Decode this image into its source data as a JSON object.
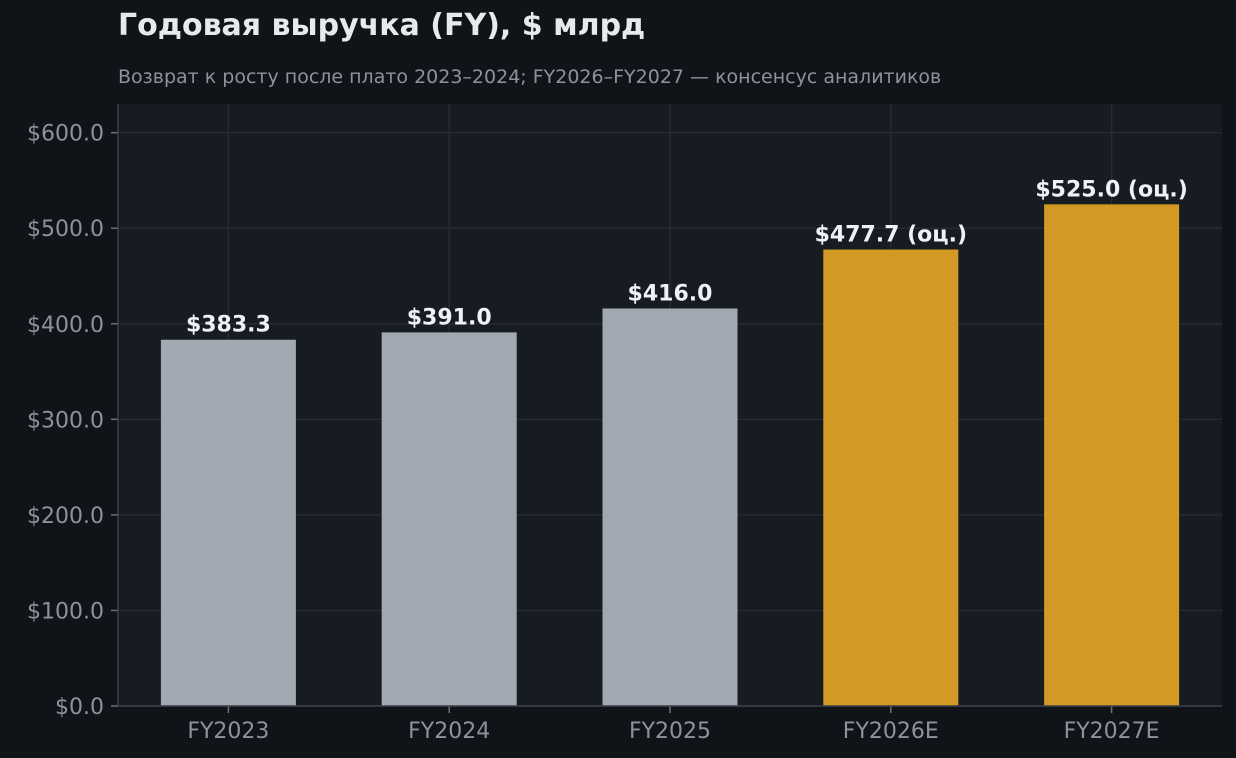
{
  "title": "Годовая выручка (FY), $ млрд",
  "subtitle": "Возврат к росту после плато 2023–2024; FY2026–FY2027 — консенсус аналитиков",
  "colors": {
    "background": "#101418",
    "plot_background": "#171b22",
    "grid": "#262b33",
    "actual_bar": "#a3a9b2",
    "estimate_bar": "#d29a24",
    "tick_text": "#8c939d",
    "label_text": "#eef1f5"
  },
  "chart_data": {
    "type": "bar",
    "categories": [
      "FY2023",
      "FY2024",
      "FY2025",
      "FY2026E",
      "FY2027E"
    ],
    "values": [
      383.3,
      391.0,
      416.0,
      477.7,
      525.0
    ],
    "estimate": [
      false,
      false,
      false,
      true,
      true
    ],
    "data_labels": [
      "$383.3",
      "$391.0",
      "$416.0",
      "$477.7 (оц.)",
      "$525.0 (оц.)"
    ],
    "y_ticks": [
      0,
      100,
      200,
      300,
      400,
      500,
      600
    ],
    "y_tick_labels": [
      "$0.0",
      "$100.0",
      "$200.0",
      "$300.0",
      "$400.0",
      "$500.0",
      "$600.0"
    ],
    "ylim": [
      0,
      630
    ],
    "grid": true,
    "xlabel": "",
    "ylabel": ""
  }
}
